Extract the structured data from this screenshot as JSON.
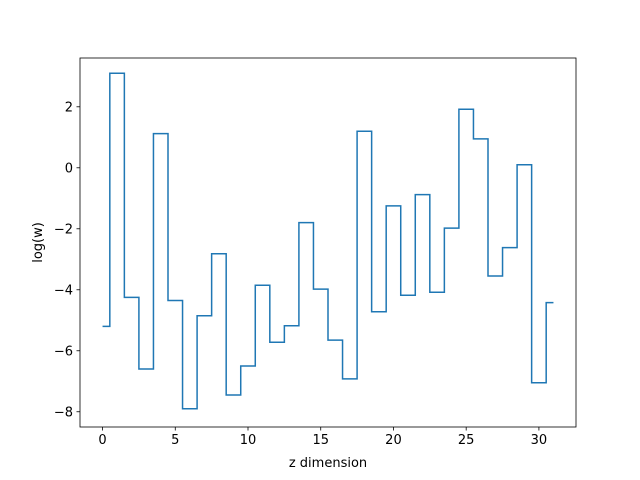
{
  "chart_data": {
    "type": "line",
    "drawstyle": "steps-mid",
    "xlabel": "z dimension",
    "ylabel": "log(w)",
    "xlim": [
      -1.55,
      32.55
    ],
    "ylim": [
      -8.5,
      3.6
    ],
    "xticks": [
      0,
      5,
      10,
      15,
      20,
      25,
      30
    ],
    "xtick_labels": [
      "0",
      "5",
      "10",
      "15",
      "20",
      "25",
      "30"
    ],
    "yticks": [
      -8,
      -6,
      -4,
      -2,
      0,
      2
    ],
    "ytick_labels": [
      "−8",
      "−6",
      "−4",
      "−2",
      "0",
      "2"
    ],
    "grid": false,
    "series": [
      {
        "color": "#1f77b4",
        "x": [
          0,
          1,
          2,
          3,
          4,
          5,
          6,
          7,
          8,
          9,
          10,
          11,
          12,
          13,
          14,
          15,
          16,
          17,
          18,
          19,
          20,
          21,
          22,
          23,
          24,
          25,
          26,
          27,
          28,
          29,
          30,
          31
        ],
        "y": [
          -5.2,
          3.1,
          -4.25,
          -6.6,
          1.12,
          -4.35,
          -7.9,
          -4.85,
          -2.82,
          -7.45,
          -6.5,
          -3.85,
          -5.72,
          -5.18,
          -1.8,
          -3.98,
          -5.65,
          -6.92,
          1.2,
          -4.72,
          -1.25,
          -4.18,
          -0.88,
          -4.08,
          -1.98,
          1.92,
          0.95,
          -3.55,
          -2.62,
          0.1,
          -7.05,
          -4.42
        ]
      }
    ]
  }
}
